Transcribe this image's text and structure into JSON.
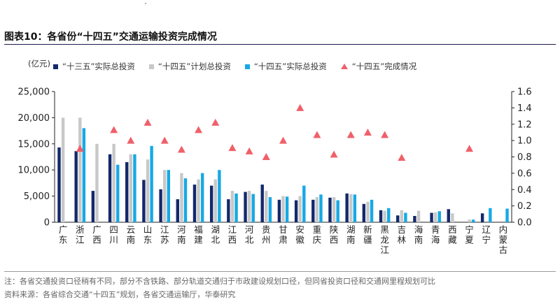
{
  "title": "图表10：各省份“十四五”交通运输投资完成情况",
  "unit_label": "(亿元)",
  "legend": {
    "s1": "“十三五”实际总投资",
    "s2": "“十四五”计划总投资",
    "s3": "“十四五”实际总投资",
    "s4": "“十四五”完成情况"
  },
  "colors": {
    "s1": "#13296b",
    "s2": "#c8c8c8",
    "s3": "#17a9e5",
    "s4": "#f0606a"
  },
  "notes": {
    "note1": "注：各省交通投资口径稍有不同，部分不含铁路、部分轨道交通归于市政建设规划口径，但同省投资口径和交通网里程规划可比",
    "note2": "资料来源：各省综合交通“十四五”规划，各省交通运输厅，华泰研究"
  },
  "chart_data": {
    "type": "bar",
    "categories": [
      "广东",
      "浙江",
      "广西",
      "四川",
      "云南",
      "山东",
      "江苏",
      "河南",
      "福建",
      "湖北",
      "江西",
      "河北",
      "贵州",
      "甘肃",
      "安徽",
      "重庆",
      "陕西",
      "湖南",
      "新疆",
      "黑龙江",
      "吉林",
      "海南",
      "青海",
      "西藏",
      "宁夏",
      "辽宁",
      "内蒙古"
    ],
    "category_labels": [
      "广东",
      "浙江",
      "广西",
      "四川",
      "云南",
      "山东",
      "江苏",
      "河南",
      "福建",
      "湖北",
      "江西",
      "河北",
      "贵州",
      "甘肃",
      "安徽",
      "重庆",
      "陕西",
      "湖南",
      "新疆",
      "黑龙江",
      "吉林",
      "海南",
      "青海",
      "西藏",
      "宁夏",
      "辽宁",
      "内蒙古"
    ],
    "y_left": {
      "min": 0,
      "max": 25000,
      "ticks": [
        "0",
        "5,000",
        "10,000",
        "15,000",
        "20,000",
        "25,000"
      ]
    },
    "y_right": {
      "min": 0,
      "max": 1.6,
      "ticks": [
        "0.0",
        "0.2",
        "0.4",
        "0.6",
        "0.8",
        "1.0",
        "1.2",
        "1.4",
        "1.6"
      ]
    },
    "series": [
      {
        "name": "“十三五”实际总投资",
        "axis": "left",
        "values": [
          14300,
          13600,
          6000,
          13000,
          11500,
          8100,
          6300,
          4400,
          7200,
          7000,
          4400,
          5800,
          7200,
          4300,
          4200,
          4300,
          4700,
          5500,
          3500,
          2300,
          1300,
          1200,
          1800,
          2500,
          0,
          1700,
          0
        ]
      },
      {
        "name": "“十四五”计划总投资",
        "axis": "left",
        "values": [
          20000,
          20000,
          15000,
          15000,
          13000,
          12000,
          10000,
          9400,
          8200,
          8200,
          6000,
          6000,
          6000,
          5000,
          5000,
          4800,
          4800,
          5400,
          3900,
          2200,
          2300,
          2200,
          1900,
          1700,
          500,
          0,
          0
        ]
      },
      {
        "name": "“十四五”实际总投资",
        "axis": "left",
        "values": [
          0,
          18000,
          0,
          11000,
          13000,
          14600,
          10000,
          8400,
          9400,
          10000,
          5500,
          5400,
          4800,
          4900,
          7000,
          5300,
          4200,
          5300,
          4300,
          2700,
          1800,
          0,
          2100,
          0,
          500,
          2700,
          2600
        ]
      },
      {
        "name": "“十四五”完成情况",
        "axis": "right",
        "type": "scatter",
        "values": [
          null,
          0.9,
          null,
          1.13,
          1.0,
          1.22,
          1.0,
          0.89,
          1.13,
          1.22,
          0.91,
          0.87,
          0.8,
          1.0,
          1.4,
          1.07,
          0.83,
          1.07,
          1.1,
          1.07,
          0.79,
          null,
          null,
          null,
          0.9,
          null,
          null
        ]
      }
    ],
    "grid": false,
    "legend_position": "top-left"
  }
}
